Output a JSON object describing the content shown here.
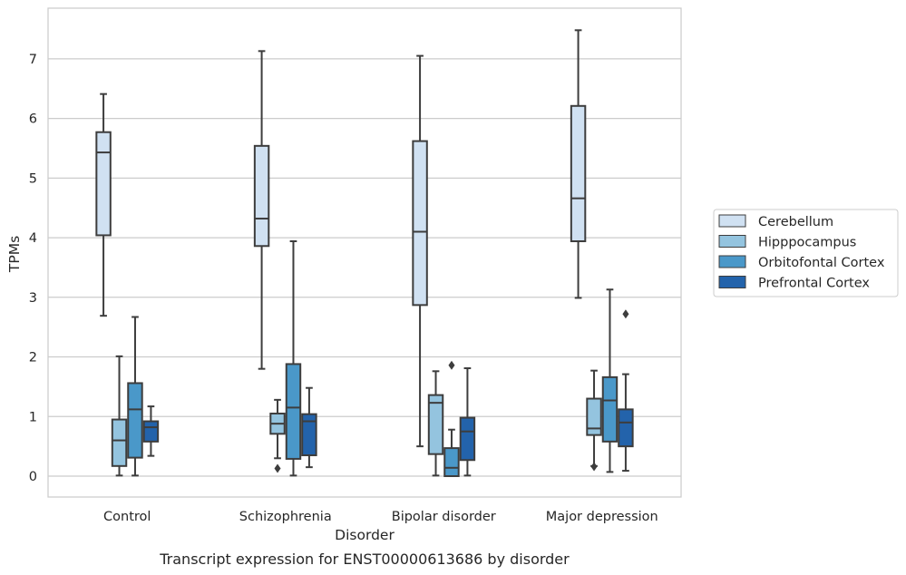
{
  "chart_data": {
    "type": "box",
    "title": "",
    "caption": "Transcript expression for ENST00000613686 by disorder",
    "xlabel": "Disorder",
    "ylabel": "TPMs",
    "ylim": [
      -0.35,
      7.85
    ],
    "yticks": [
      "0",
      "1",
      "2",
      "3",
      "4",
      "5",
      "6",
      "7"
    ],
    "grid": "horizontal",
    "legend_position": "right",
    "categories": [
      "Control",
      "Schizophrenia",
      "Bipolar disorder",
      "Major depression"
    ],
    "series": [
      {
        "name": "Cerebellum",
        "color": "#d0e1f2",
        "boxes": [
          {
            "whisker_low": 2.69,
            "q1": 4.04,
            "median": 5.43,
            "q3": 5.77,
            "whisker_high": 6.41,
            "outliers": []
          },
          {
            "whisker_low": 1.8,
            "q1": 3.86,
            "median": 4.32,
            "q3": 5.54,
            "whisker_high": 7.13,
            "outliers": []
          },
          {
            "whisker_low": 0.5,
            "q1": 2.87,
            "median": 4.1,
            "q3": 5.62,
            "whisker_high": 7.05,
            "outliers": []
          },
          {
            "whisker_low": 2.99,
            "q1": 3.94,
            "median": 4.66,
            "q3": 6.21,
            "whisker_high": 7.48,
            "outliers": []
          }
        ]
      },
      {
        "name": "Hipppocampus",
        "color": "#94c4df",
        "boxes": [
          {
            "whisker_low": 0.01,
            "q1": 0.17,
            "median": 0.6,
            "q3": 0.95,
            "whisker_high": 2.01,
            "outliers": []
          },
          {
            "whisker_low": 0.3,
            "q1": 0.71,
            "median": 0.88,
            "q3": 1.05,
            "whisker_high": 1.28,
            "outliers": [
              0.13
            ]
          },
          {
            "whisker_low": 0.01,
            "q1": 0.37,
            "median": 1.23,
            "q3": 1.36,
            "whisker_high": 1.76,
            "outliers": []
          },
          {
            "whisker_low": 0.17,
            "q1": 0.69,
            "median": 0.8,
            "q3": 1.3,
            "whisker_high": 1.77,
            "outliers": [
              0.16
            ]
          }
        ]
      },
      {
        "name": "Orbitofontal Cortex",
        "color": "#4a98c9",
        "boxes": [
          {
            "whisker_low": 0.01,
            "q1": 0.31,
            "median": 1.12,
            "q3": 1.56,
            "whisker_high": 2.67,
            "outliers": []
          },
          {
            "whisker_low": 0.01,
            "q1": 0.29,
            "median": 1.15,
            "q3": 1.88,
            "whisker_high": 3.94,
            "outliers": []
          },
          {
            "whisker_low": 0.0,
            "q1": 0.0,
            "median": 0.14,
            "q3": 0.47,
            "whisker_high": 0.78,
            "outliers": [
              1.86
            ]
          },
          {
            "whisker_low": 0.07,
            "q1": 0.58,
            "median": 1.27,
            "q3": 1.66,
            "whisker_high": 3.13,
            "outliers": []
          }
        ]
      },
      {
        "name": "Prefrontal Cortex",
        "color": "#2363ab",
        "boxes": [
          {
            "whisker_low": 0.34,
            "q1": 0.58,
            "median": 0.82,
            "q3": 0.92,
            "whisker_high": 1.17,
            "outliers": []
          },
          {
            "whisker_low": 0.15,
            "q1": 0.35,
            "median": 0.92,
            "q3": 1.04,
            "whisker_high": 1.48,
            "outliers": []
          },
          {
            "whisker_low": 0.01,
            "q1": 0.27,
            "median": 0.75,
            "q3": 0.98,
            "whisker_high": 1.81,
            "outliers": []
          },
          {
            "whisker_low": 0.09,
            "q1": 0.5,
            "median": 0.9,
            "q3": 1.12,
            "whisker_high": 1.71,
            "outliers": [
              2.72
            ]
          }
        ]
      }
    ]
  }
}
